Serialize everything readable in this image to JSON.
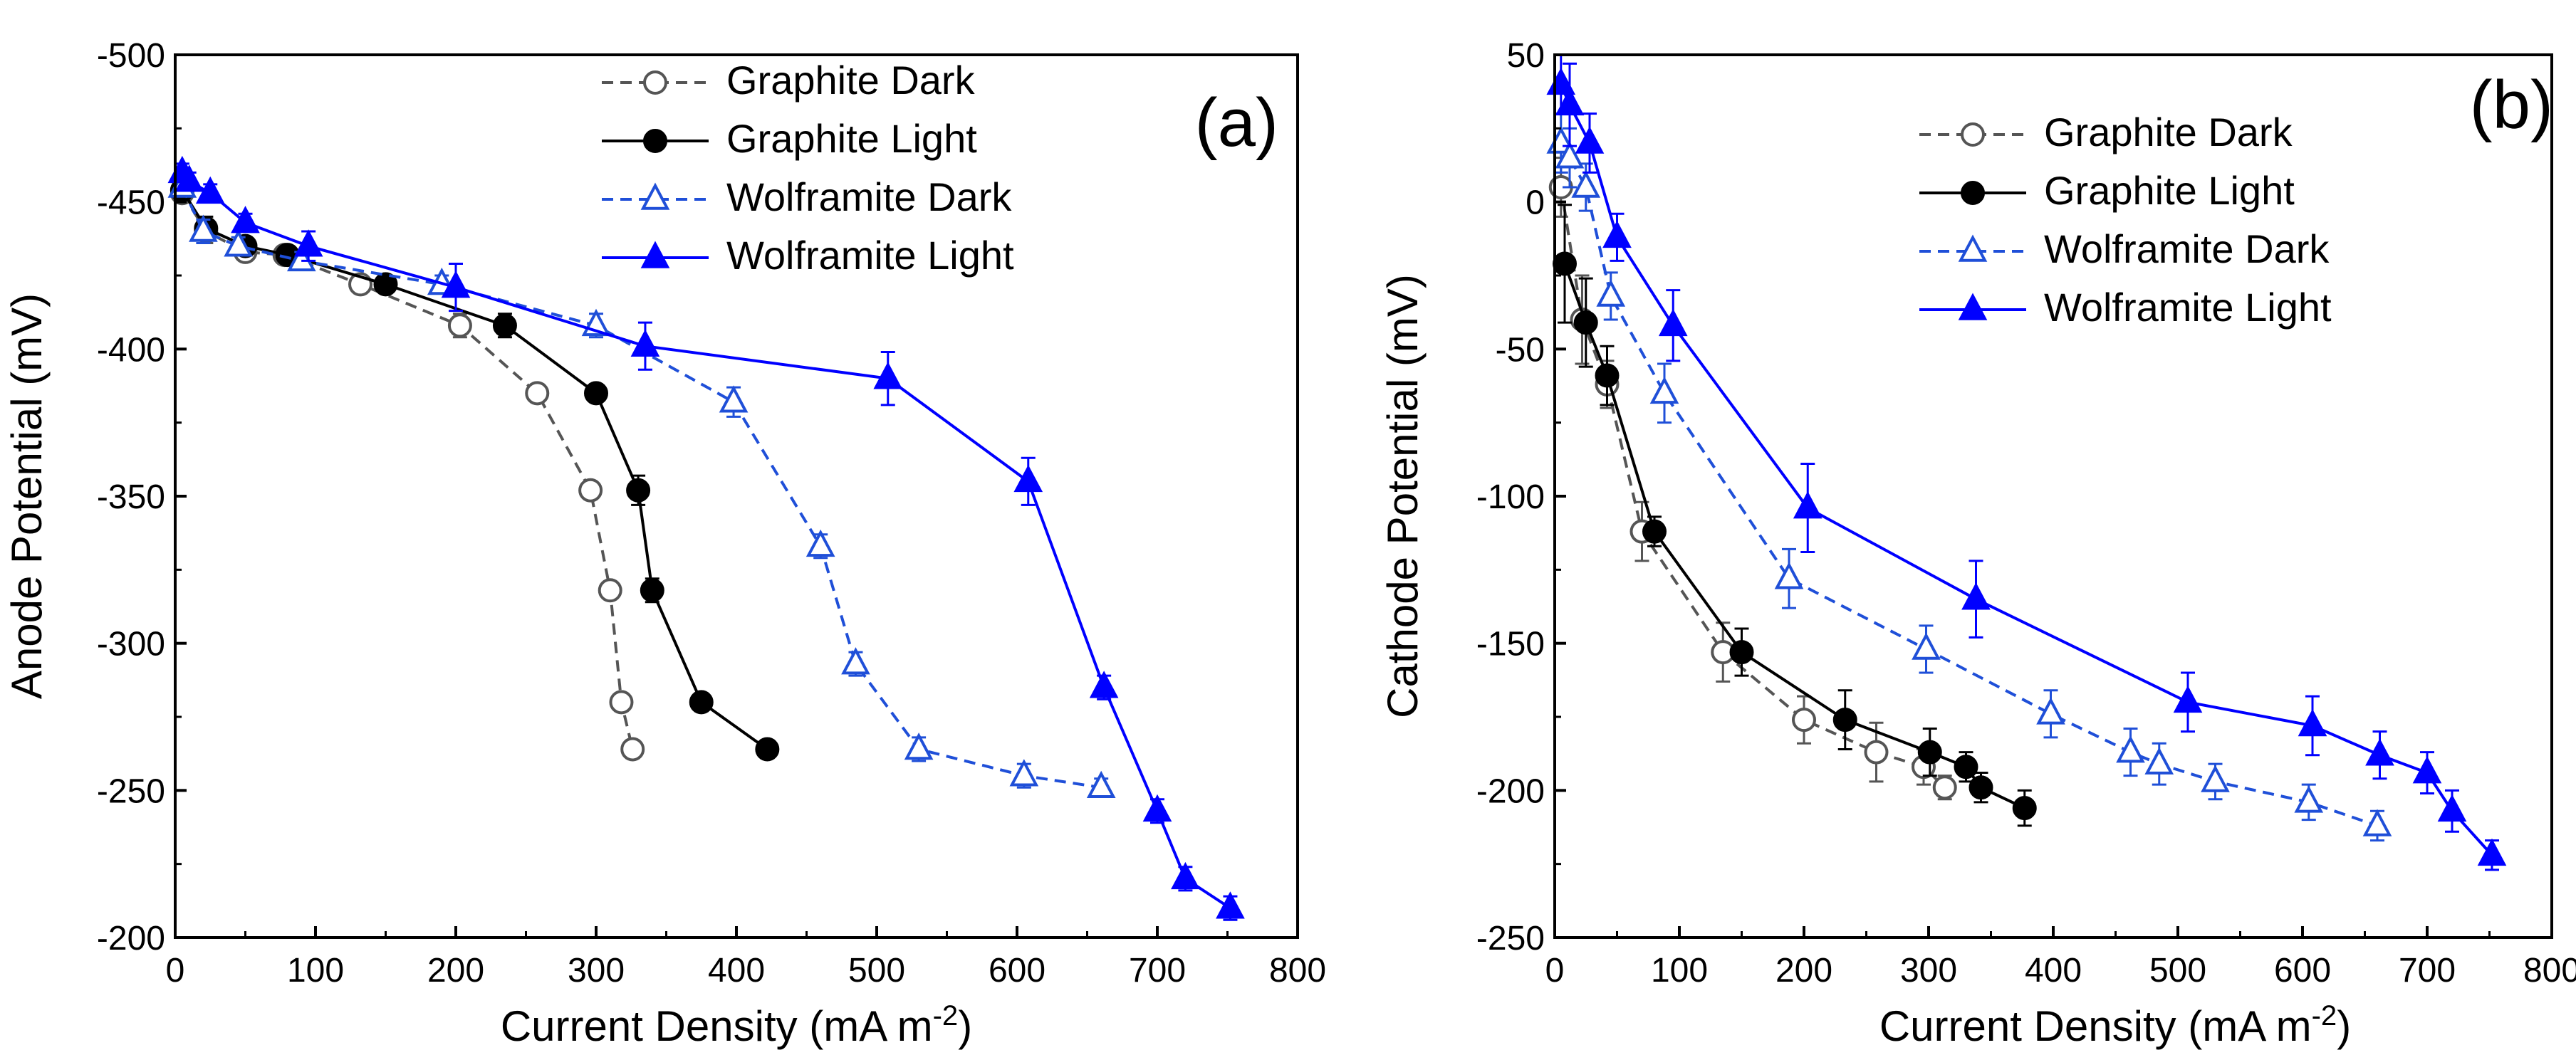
{
  "chart_data": [
    {
      "type": "line",
      "panel_label": "(a)",
      "xlabel": "Current Density (mA m",
      "xlabel_sup": "-2",
      "xlabel_end": ")",
      "ylabel": "Anode Potential (mV)",
      "xlim": [
        0,
        800
      ],
      "ylim": [
        -500,
        -200
      ],
      "y_reversed": true,
      "x_ticks": [
        0,
        100,
        200,
        300,
        400,
        500,
        600,
        700,
        800
      ],
      "y_ticks": [
        -500,
        -450,
        -400,
        -350,
        -300,
        -250,
        -200
      ],
      "legend_position": "top-right",
      "series": [
        {
          "name": "Graphite Dark",
          "color": "#555555",
          "marker": "circle",
          "filled": false,
          "dashed": true,
          "x": [
            5,
            22,
            50,
            78,
            132,
            203,
            258,
            296,
            310,
            318,
            326
          ],
          "y": [
            -453,
            -440,
            -433,
            -432,
            -422,
            -408,
            -385,
            -352,
            -318,
            -280,
            -264
          ],
          "err": [
            3,
            4,
            3,
            3,
            3,
            4,
            3,
            3,
            3,
            3,
            3
          ]
        },
        {
          "name": "Graphite Light",
          "color": "#000000",
          "marker": "circle",
          "filled": true,
          "dashed": false,
          "x": [
            5,
            22,
            50,
            80,
            150,
            235,
            300,
            330,
            340,
            375,
            422
          ],
          "y": [
            -454,
            -441,
            -435,
            -432,
            -422,
            -408,
            -385,
            -352,
            -318,
            -280,
            -264
          ],
          "err": [
            3,
            4,
            3,
            3,
            3,
            4,
            3,
            5,
            4,
            3,
            3
          ]
        },
        {
          "name": "Wolframite Dark",
          "color": "#1f4fd8",
          "marker": "triangle",
          "filled": false,
          "dashed": true,
          "x": [
            5,
            20,
            45,
            90,
            190,
            300,
            398,
            460,
            485,
            530,
            605,
            660
          ],
          "y": [
            -455,
            -440,
            -435,
            -430,
            -422,
            -408,
            -382,
            -333,
            -293,
            -264,
            -255,
            -251
          ],
          "err": [
            3,
            4,
            3,
            3,
            3,
            4,
            5,
            4,
            4,
            4,
            4,
            3
          ]
        },
        {
          "name": "Wolframite Light",
          "color": "#0000ff",
          "marker": "triangle",
          "filled": true,
          "dashed": false,
          "x": [
            5,
            10,
            25,
            50,
            95,
            200,
            335,
            508,
            608,
            662,
            700,
            720,
            752
          ],
          "y": [
            -460,
            -457,
            -453,
            -443,
            -435,
            -421,
            -401,
            -390,
            -355,
            -285,
            -243,
            -220,
            -210
          ],
          "err": [
            3,
            3,
            3,
            3,
            5,
            8,
            8,
            9,
            8,
            4,
            4,
            4,
            4
          ]
        }
      ]
    },
    {
      "type": "line",
      "panel_label": "(b)",
      "xlabel": "Current Density (mA m",
      "xlabel_sup": "-2",
      "xlabel_end": ")",
      "ylabel": "Cathode Potential (mV)",
      "xlim": [
        0,
        800
      ],
      "ylim": [
        -250,
        50
      ],
      "y_reversed": false,
      "x_ticks": [
        0,
        100,
        200,
        300,
        400,
        500,
        600,
        700,
        800
      ],
      "y_ticks": [
        -250,
        -200,
        -150,
        -100,
        -50,
        0,
        50
      ],
      "legend_position": "top-right",
      "series": [
        {
          "name": "Graphite Dark",
          "color": "#555555",
          "marker": "circle",
          "filled": false,
          "dashed": true,
          "x": [
            5,
            22,
            42,
            70,
            135,
            200,
            258,
            296,
            313
          ],
          "y": [
            5,
            -40,
            -62,
            -112,
            -153,
            -176,
            -187,
            -192,
            -199
          ],
          "err": [
            10,
            15,
            8,
            10,
            10,
            8,
            10,
            6,
            4
          ]
        },
        {
          "name": "Graphite Light",
          "color": "#000000",
          "marker": "circle",
          "filled": true,
          "dashed": false,
          "x": [
            8,
            25,
            42,
            80,
            150,
            233,
            301,
            330,
            342,
            377
          ],
          "y": [
            -21,
            -41,
            -59,
            -112,
            -153,
            -176,
            -187,
            -192,
            -199,
            -206
          ],
          "err": [
            20,
            15,
            10,
            5,
            8,
            10,
            8,
            5,
            5,
            6
          ]
        },
        {
          "name": "Wolframite Dark",
          "color": "#1f4fd8",
          "marker": "triangle",
          "filled": false,
          "dashed": true,
          "x": [
            5,
            12,
            25,
            45,
            88,
            188,
            298,
            398,
            462,
            485,
            530,
            605,
            660
          ],
          "y": [
            20,
            15,
            5,
            -32,
            -65,
            -128,
            -152,
            -174,
            -187,
            -191,
            -197,
            -204,
            -212
          ],
          "err": [
            10,
            10,
            8,
            8,
            10,
            10,
            8,
            8,
            8,
            7,
            6,
            6,
            5
          ]
        },
        {
          "name": "Wolframite Light",
          "color": "#0000ff",
          "marker": "triangle",
          "filled": true,
          "dashed": false,
          "x": [
            5,
            12,
            28,
            50,
            95,
            203,
            338,
            508,
            608,
            662,
            700,
            720,
            752
          ],
          "y": [
            40,
            33,
            20,
            -12,
            -42,
            -104,
            -135,
            -170,
            -178,
            -188,
            -194,
            -207,
            -222
          ],
          "err": [
            10,
            14,
            10,
            8,
            12,
            15,
            13,
            10,
            10,
            8,
            7,
            7,
            5
          ]
        }
      ]
    }
  ]
}
